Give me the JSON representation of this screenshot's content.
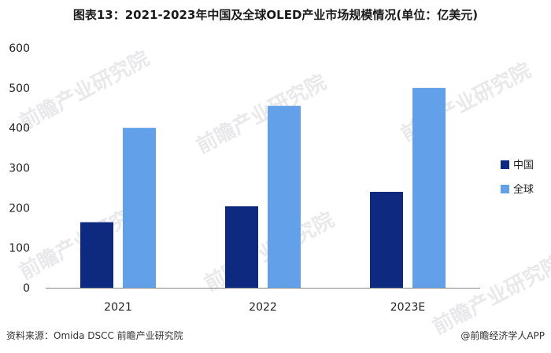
{
  "title": "图表13：2021-2023年中国及全球OLED产业市场规模情况(单位：亿美元)",
  "footer": {
    "source": "资料来源：Omida DSCC 前瞻产业研究院",
    "brand": "@前瞻经济学人APP"
  },
  "watermark_text": "前瞻产业研究院",
  "colors": {
    "china": "#0d2a80",
    "global": "#62a0ea",
    "axis": "#888888",
    "text": "#222222"
  },
  "chart_data": {
    "type": "bar",
    "title": "图表13：2021-2023年中国及全球OLED产业市场规模情况(单位：亿美元)",
    "categories": [
      "2021",
      "2022",
      "2023E"
    ],
    "series": [
      {
        "name": "中国",
        "values": [
          164,
          204,
          240
        ],
        "color": "#0d2a80"
      },
      {
        "name": "全球",
        "values": [
          400,
          455,
          500
        ],
        "color": "#62a0ea"
      }
    ],
    "yticks": [
      0,
      100,
      200,
      300,
      400,
      500,
      600
    ],
    "ylim": [
      0,
      600
    ],
    "grid": false,
    "legend_position": "right"
  }
}
